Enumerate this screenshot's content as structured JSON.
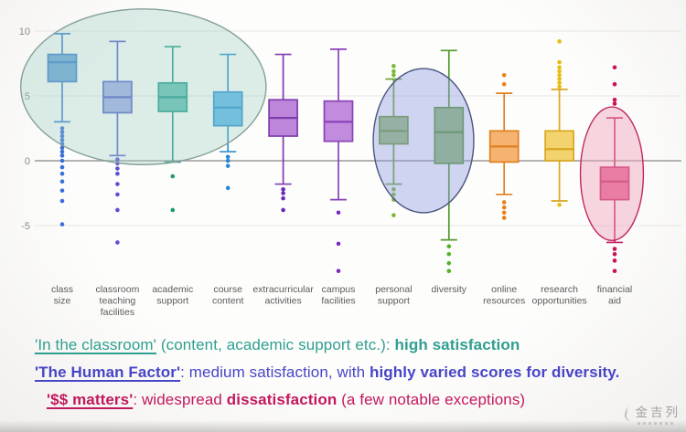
{
  "watermark": {
    "brand": "金吉列"
  },
  "notes": [
    {
      "color": "#2f9f90",
      "indent": false,
      "parts": [
        {
          "t": "'In the classroom'",
          "u": true,
          "b": false
        },
        {
          "t": " (content, academic support etc.): ",
          "u": false,
          "b": false
        },
        {
          "t": "high satisfaction",
          "u": false,
          "b": true
        }
      ]
    },
    {
      "color": "#4845c7",
      "indent": false,
      "parts": [
        {
          "t": "'The Human Factor'",
          "u": true,
          "b": true
        },
        {
          "t": ": medium satisfaction, with ",
          "u": false,
          "b": false
        },
        {
          "t": "highly varied scores for diversity.",
          "u": false,
          "b": true
        }
      ]
    },
    {
      "color": "#c2195e",
      "indent": true,
      "parts": [
        {
          "t": "'$$ matters'",
          "u": true,
          "b": true
        },
        {
          "t": ": widespread ",
          "u": false,
          "b": false
        },
        {
          "t": "dissatisfaction",
          "u": false,
          "b": true
        },
        {
          "t": " (a few notable exceptions)",
          "u": false,
          "b": false
        }
      ]
    }
  ],
  "chart_data": {
    "type": "boxplot",
    "title": "",
    "xlabel": "",
    "ylabel": "",
    "ylim": [
      -9.5,
      11.5
    ],
    "yticks": [
      10,
      5,
      0,
      -5
    ],
    "grid": true,
    "zero_line": true,
    "axis_label_color": "#8a8a8a",
    "grid_color": "#e7e5e2",
    "zero_line_color": "#9c9a98",
    "category_label_color": "#5b5b5b",
    "categories": [
      "class size",
      "classroom teaching facilities",
      "academic support",
      "course content",
      "extracurricular activities",
      "campus facilities",
      "personal support",
      "diversity",
      "online resources",
      "research opportunities",
      "financial aid"
    ],
    "series": [
      {
        "label": "class size",
        "lines": [
          "class",
          "size"
        ],
        "fill": "#6fa6d9",
        "stroke": "#3c7fd0",
        "dot": "#3a6fd8",
        "q1": 6.1,
        "median": 7.6,
        "q3": 8.2,
        "whisker_low": 3.0,
        "whisker_high": 9.8,
        "outliers_high": [],
        "outliers_low": [
          2.5,
          2.2,
          1.9,
          1.6,
          1.3,
          1.0,
          0.7,
          0.4,
          0.0,
          -0.5,
          -1.0,
          -1.6,
          -2.3,
          -3.1,
          -4.9
        ]
      },
      {
        "label": "classroom teaching facilities",
        "lines": [
          "classroom",
          "teaching",
          "facilities"
        ],
        "fill": "#a3aee6",
        "stroke": "#5a64cc",
        "dot": "#5a50d8",
        "q1": 3.7,
        "median": 4.9,
        "q3": 6.1,
        "whisker_low": 0.4,
        "whisker_high": 9.2,
        "outliers_high": [],
        "outliers_low": [
          0.1,
          -0.2,
          -0.6,
          -1.0,
          -1.8,
          -2.6,
          -3.8,
          -6.3
        ]
      },
      {
        "label": "academic support",
        "lines": [
          "academic",
          "support"
        ],
        "fill": "#66c0b4",
        "stroke": "#1f9a8a",
        "dot": "#1f9a6a",
        "q1": 3.8,
        "median": 4.9,
        "q3": 6.0,
        "whisker_low": -0.1,
        "whisker_high": 8.8,
        "outliers_high": [],
        "outliers_low": [
          -1.2,
          -3.8
        ]
      },
      {
        "label": "course content",
        "lines": [
          "course",
          "content"
        ],
        "fill": "#5fb7ea",
        "stroke": "#2b90d0",
        "dot": "#2a86d8",
        "q1": 2.7,
        "median": 4.1,
        "q3": 5.3,
        "whisker_low": 0.7,
        "whisker_high": 8.2,
        "outliers_high": [],
        "outliers_low": [
          0.3,
          0.0,
          -0.4,
          -2.1
        ]
      },
      {
        "label": "extracurricular activities",
        "lines": [
          "extracurricular",
          "activities"
        ],
        "fill": "#be86da",
        "stroke": "#7e3cae",
        "dot": "#6a28b8",
        "q1": 1.9,
        "median": 3.3,
        "q3": 4.7,
        "whisker_low": -1.8,
        "whisker_high": 8.2,
        "outliers_high": [],
        "outliers_low": [
          -2.2,
          -2.5,
          -2.9,
          -3.8
        ]
      },
      {
        "label": "campus facilities",
        "lines": [
          "campus",
          "facilities"
        ],
        "fill": "#c18cdc",
        "stroke": "#8a42b8",
        "dot": "#7a2cc0",
        "q1": 1.5,
        "median": 3.0,
        "q3": 4.6,
        "whisker_low": -3.0,
        "whisker_high": 8.6,
        "outliers_high": [],
        "outliers_low": [
          -4.0,
          -6.4,
          -8.5
        ]
      },
      {
        "label": "personal support",
        "lines": [
          "personal",
          "support"
        ],
        "fill": "#9cbf78",
        "stroke": "#6aa132",
        "dot": "#7ab832",
        "q1": 1.3,
        "median": 2.3,
        "q3": 3.4,
        "whisker_low": -1.8,
        "whisker_high": 6.3,
        "outliers_high": [
          6.6,
          6.9,
          7.3
        ],
        "outliers_low": [
          -2.2,
          -2.6,
          -3.0,
          -4.2
        ]
      },
      {
        "label": "diversity",
        "lines": [
          "diversity"
        ],
        "fill": "#93bd74",
        "stroke": "#55992e",
        "dot": "#55b32a",
        "q1": -0.2,
        "median": 2.2,
        "q3": 4.1,
        "whisker_low": -6.1,
        "whisker_high": 8.5,
        "outliers_high": [],
        "outliers_low": [
          -6.6,
          -7.2,
          -7.9,
          -8.5
        ]
      },
      {
        "label": "online resources",
        "lines": [
          "online",
          "resources"
        ],
        "fill": "#f4b371",
        "stroke": "#e0801f",
        "dot": "#e8821a",
        "q1": -0.1,
        "median": 1.1,
        "q3": 2.3,
        "whisker_low": -2.6,
        "whisker_high": 5.2,
        "outliers_high": [
          5.9,
          6.6
        ],
        "outliers_low": [
          -3.2,
          -3.6,
          -4.0,
          -4.4
        ]
      },
      {
        "label": "research opportunities",
        "lines": [
          "research",
          "opportunities"
        ],
        "fill": "#f3d36d",
        "stroke": "#d9a61e",
        "dot": "#e6bc14",
        "q1": 0.0,
        "median": 0.9,
        "q3": 2.3,
        "whisker_low": -3.1,
        "whisker_high": 5.5,
        "outliers_high": [
          5.7,
          6.0,
          6.3,
          6.6,
          6.9,
          7.2,
          7.6,
          9.2
        ],
        "outliers_low": [
          -3.4
        ]
      },
      {
        "label": "financial aid",
        "lines": [
          "financial",
          "aid"
        ],
        "fill": "#e55e8f",
        "stroke": "#c41f63",
        "dot": "#cc1254",
        "q1": -3.0,
        "median": -1.6,
        "q3": -0.5,
        "whisker_low": -6.3,
        "whisker_high": 3.3,
        "outliers_high": [
          4.4,
          4.7,
          5.9,
          7.2
        ],
        "outliers_low": [
          -6.8,
          -7.2,
          -7.7,
          -8.5
        ]
      }
    ],
    "highlight_ellipses": [
      {
        "name": "in-the-classroom",
        "cat_center": 1.47,
        "cat_radius": 2.22,
        "val_center": 5.7,
        "val_radius": 6.0,
        "fill": "#9ecfc4",
        "fill_opacity": 0.35,
        "stroke": "#84a09a"
      },
      {
        "name": "the-human-factor",
        "cat_center": 6.54,
        "cat_radius": 0.91,
        "val_center": 1.55,
        "val_radius": 5.56,
        "fill": "#8f9ce0",
        "fill_opacity": 0.42,
        "stroke": "#4d5480"
      },
      {
        "name": "money-matters",
        "cat_center": 9.95,
        "cat_radius": 0.57,
        "val_center": -1.0,
        "val_radius": 5.15,
        "fill": "#eda4bd",
        "fill_opacity": 0.45,
        "stroke": "#c2255e"
      }
    ],
    "legend": "none"
  }
}
